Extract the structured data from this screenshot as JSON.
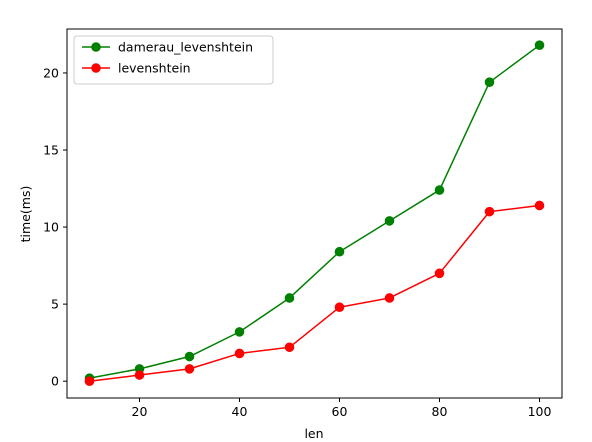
{
  "chart_data": {
    "type": "line",
    "title": "",
    "xlabel": "len",
    "ylabel": "time(ms)",
    "x": [
      10,
      20,
      30,
      40,
      50,
      60,
      70,
      80,
      90,
      100
    ],
    "xlim": [
      5.5,
      104.5
    ],
    "ylim": [
      -1.09,
      22.85
    ],
    "x_ticks": [
      20,
      40,
      60,
      80,
      100
    ],
    "y_ticks": [
      0,
      5,
      10,
      15,
      20
    ],
    "grid": false,
    "legend_position": "top-left",
    "series": [
      {
        "name": "damerau_levenshtein",
        "color": "#008000",
        "marker": "circle",
        "values": [
          0.2,
          0.8,
          1.6,
          3.2,
          5.4,
          8.4,
          10.4,
          12.4,
          19.4,
          21.8
        ]
      },
      {
        "name": "levenshtein",
        "color": "#ff0000",
        "marker": "circle",
        "values": [
          0.0,
          0.4,
          0.8,
          1.8,
          2.2,
          4.8,
          5.4,
          7.0,
          11.0,
          11.4
        ]
      }
    ]
  }
}
